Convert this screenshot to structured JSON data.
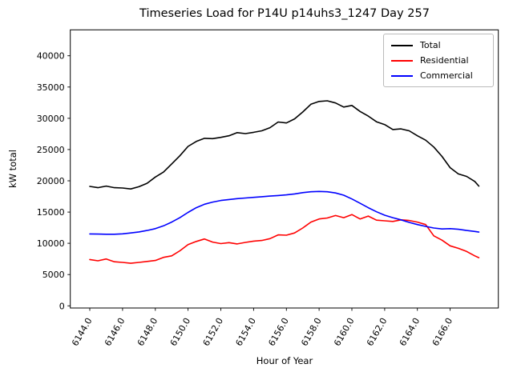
{
  "title": "Timeseries Load for P14U p14uhs3_1247  Day 257",
  "chart_data": {
    "type": "line",
    "title": "Timeseries Load for P14U p14uhs3_1247  Day 257",
    "xlabel": "Hour of Year",
    "ylabel": "kW total",
    "xlim": [
      6142.81,
      6168.94
    ],
    "ylim": [
      -350,
      44150
    ],
    "grid": false,
    "xticks": [
      6144,
      6146,
      6148,
      6150,
      6152,
      6154,
      6156,
      6158,
      6160,
      6162,
      6164,
      6166
    ],
    "xtick_labels": [
      "6144.0",
      "6146.0",
      "6148.0",
      "6150.0",
      "6152.0",
      "6154.0",
      "6156.0",
      "6158.0",
      "6160.0",
      "6162.0",
      "6164.0",
      "6166.0"
    ],
    "yticks": [
      0,
      5000,
      10000,
      15000,
      20000,
      25000,
      30000,
      35000,
      40000
    ],
    "legend": {
      "position": "upper right",
      "entries": [
        "Total",
        "Residential",
        "Commercial"
      ]
    },
    "x": [
      6144.0,
      6144.5,
      6145.0,
      6145.5,
      6146.0,
      6146.5,
      6147.0,
      6147.5,
      6148.0,
      6148.5,
      6149.0,
      6149.5,
      6150.0,
      6150.5,
      6151.0,
      6151.5,
      6152.0,
      6152.5,
      6153.0,
      6153.5,
      6154.0,
      6154.5,
      6155.0,
      6155.5,
      6156.0,
      6156.5,
      6157.0,
      6157.5,
      6158.0,
      6158.5,
      6159.0,
      6159.5,
      6160.0,
      6160.5,
      6161.0,
      6161.5,
      6162.0,
      6162.5,
      6163.0,
      6163.5,
      6164.0,
      6164.5,
      6165.0,
      6165.5,
      6166.0,
      6166.5,
      6167.0,
      6167.5,
      6167.75
    ],
    "series": [
      {
        "name": "Total",
        "color": "#000000",
        "values": [
          19100,
          18900,
          19150,
          18900,
          18850,
          18700,
          19050,
          19600,
          20600,
          21400,
          22700,
          24000,
          25500,
          26300,
          26800,
          26750,
          26950,
          27200,
          27700,
          27550,
          27750,
          28000,
          28500,
          29400,
          29250,
          29900,
          31000,
          32250,
          32700,
          32800,
          32450,
          31800,
          32050,
          31100,
          30350,
          29450,
          29000,
          28200,
          28300,
          28000,
          27200,
          26500,
          25400,
          23900,
          22100,
          21100,
          20700,
          19900,
          19150
        ]
      },
      {
        "name": "Residential",
        "color": "#ff0000",
        "values": [
          7400,
          7200,
          7500,
          7050,
          6950,
          6800,
          6950,
          7100,
          7250,
          7750,
          8000,
          8800,
          9800,
          10300,
          10700,
          10200,
          9950,
          10100,
          9900,
          10150,
          10350,
          10450,
          10750,
          11350,
          11300,
          11650,
          12450,
          13400,
          13900,
          14050,
          14450,
          14100,
          14600,
          13900,
          14350,
          13700,
          13600,
          13500,
          13750,
          13650,
          13400,
          13000,
          11200,
          10500,
          9600,
          9200,
          8700,
          8000,
          7700
        ]
      },
      {
        "name": "Commercial",
        "color": "#0000ff",
        "values": [
          11500,
          11480,
          11450,
          11450,
          11520,
          11650,
          11820,
          12050,
          12350,
          12800,
          13400,
          14100,
          14950,
          15700,
          16250,
          16600,
          16850,
          17000,
          17150,
          17250,
          17350,
          17450,
          17550,
          17650,
          17750,
          17900,
          18100,
          18250,
          18300,
          18250,
          18050,
          17700,
          17100,
          16400,
          15700,
          15050,
          14500,
          14100,
          13750,
          13350,
          13000,
          12700,
          12450,
          12300,
          12350,
          12250,
          12050,
          11900,
          11800
        ]
      }
    ]
  }
}
